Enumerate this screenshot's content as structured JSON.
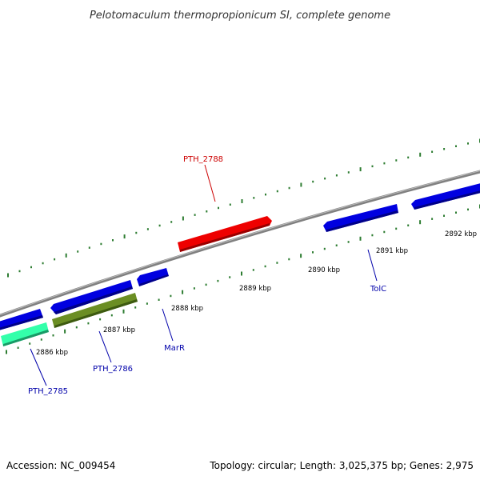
{
  "header": {
    "title": "Pelotomaculum thermopropionicum SI, complete genome"
  },
  "footer": {
    "accession": "Accession: NC_009454",
    "summary": "Topology: circular; Length: 3,025,375 bp; Genes: 2,975"
  },
  "colors": {
    "backbone": "#808080",
    "tick_major": "#2e7d32",
    "tick_minor": "#2e7d32",
    "gene_blue": "#0000e0",
    "gene_red": "#ee0000",
    "gene_green": "#6b8e23",
    "gene_cyan": "#33ffaa",
    "label_blue": "#0000aa",
    "label_red": "#cc0000"
  },
  "ruler": {
    "kbp_labels": [
      "2886 kbp",
      "2887 kbp",
      "2888 kbp",
      "2889 kbp",
      "2890 kbp",
      "2891 kbp",
      "2892 kbp"
    ]
  },
  "genes": {
    "labeled": [
      {
        "name": "PTH_2785",
        "color": "label_blue"
      },
      {
        "name": "PTH_2786",
        "color": "label_blue"
      },
      {
        "name": "MarR",
        "color": "label_blue"
      },
      {
        "name": "PTH_2788",
        "color": "label_red"
      },
      {
        "name": "TolC",
        "color": "label_blue"
      }
    ]
  }
}
